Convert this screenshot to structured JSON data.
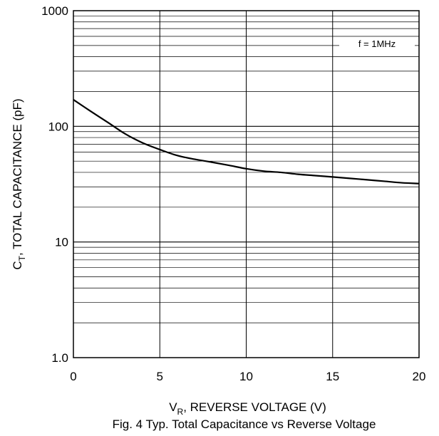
{
  "chart_data": {
    "type": "line",
    "title": "",
    "caption": "Fig. 4  Typ. Total Capacitance vs Reverse Voltage",
    "xlabel": {
      "main": "V",
      "sub": "R",
      "rest": ", REVERSE VOLTAGE (V)"
    },
    "ylabel": {
      "main": "C",
      "sub": "T",
      "rest": ", TOTAL CAPACITANCE (pF)"
    },
    "xlim": [
      0,
      20
    ],
    "ylim": [
      1,
      1000
    ],
    "yscale": "log",
    "grid": true,
    "x_ticks": [
      0,
      5,
      10,
      15,
      20
    ],
    "x_tick_labels": [
      "0",
      "5",
      "10",
      "15",
      "20"
    ],
    "y_ticks": [
      1,
      10,
      100,
      1000
    ],
    "y_tick_labels": [
      "1.0",
      "10",
      "100",
      "1000"
    ],
    "annotation": "f = 1MHz",
    "series": [
      {
        "x": [
          0,
          1,
          2,
          3,
          4,
          5,
          6,
          7,
          8,
          9,
          10,
          11,
          12,
          13,
          14,
          15,
          16,
          17,
          18,
          19,
          20
        ],
        "y": [
          170,
          135,
          108,
          86,
          72,
          63,
          56,
          52,
          49,
          46,
          43,
          41,
          40,
          38.5,
          37.5,
          36.5,
          35.5,
          34.5,
          33.5,
          32.5,
          32
        ]
      }
    ]
  }
}
